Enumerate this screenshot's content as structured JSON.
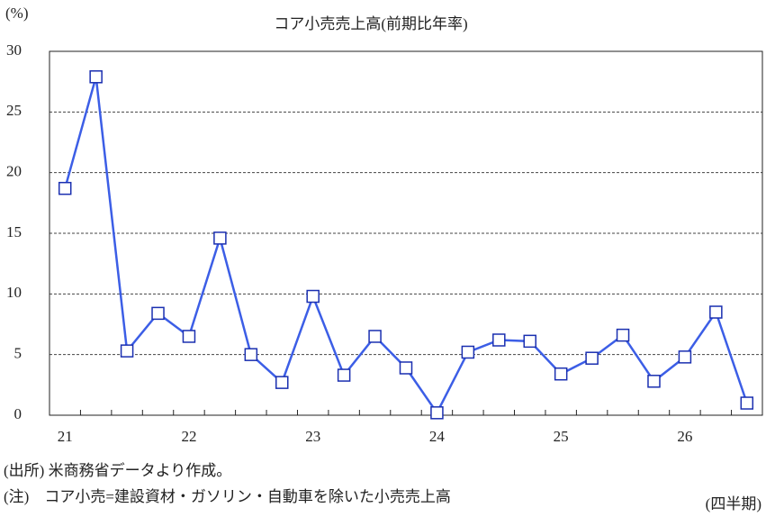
{
  "chart_data": {
    "type": "line",
    "title": "コア小売売上高(前期比年率)",
    "y_unit": "(%)",
    "x_label": "(四半期)",
    "notes": [
      "(出所) 米商務省データより作成。",
      "(注)　コア小売=建設資材・ガソリン・自動車を除いた小売売上高"
    ],
    "categories": [
      "21",
      null,
      null,
      null,
      "22",
      null,
      null,
      null,
      "23",
      null,
      null,
      null,
      "24",
      null,
      null,
      null,
      "25",
      null,
      null,
      null,
      "26",
      null,
      null
    ],
    "series": [
      {
        "name": "コア小売売上高",
        "color": "#3c5ee6",
        "values": [
          18.7,
          27.9,
          5.3,
          8.4,
          6.5,
          14.6,
          5.0,
          2.7,
          9.8,
          3.3,
          6.5,
          3.9,
          0.2,
          5.2,
          6.2,
          6.1,
          3.4,
          4.7,
          6.6,
          2.8,
          4.8,
          8.5,
          1.0
        ]
      }
    ],
    "ylim": [
      0,
      30
    ],
    "yticks": [
      0,
      5,
      10,
      15,
      20,
      25,
      30
    ],
    "grid": true
  }
}
